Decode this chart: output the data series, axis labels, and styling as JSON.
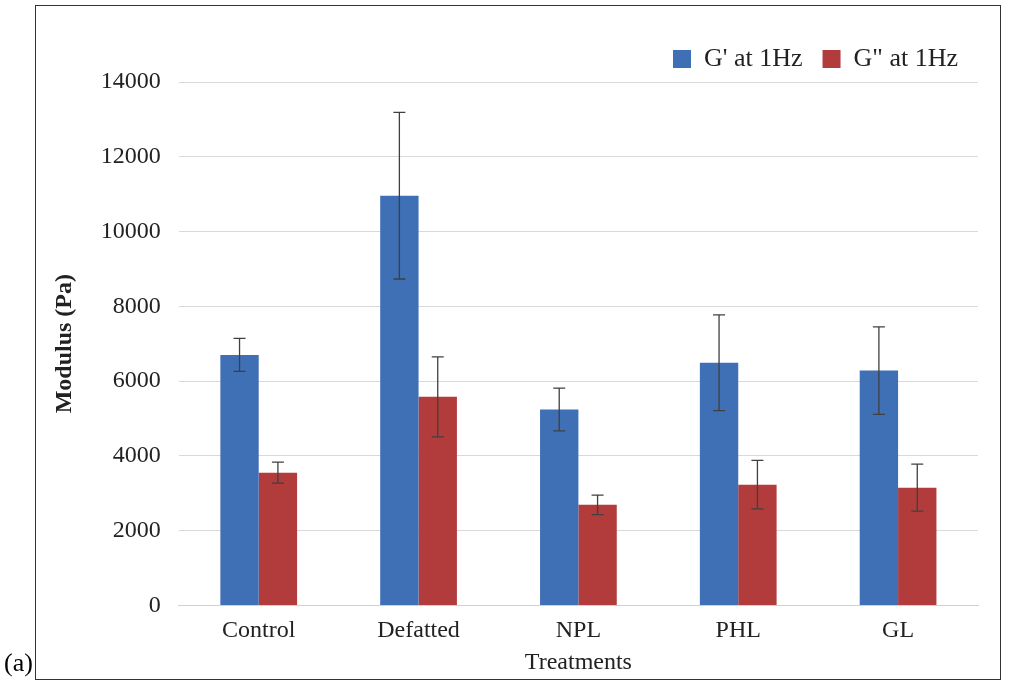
{
  "chart_data": {
    "type": "bar",
    "xlabel": "Treatments",
    "ylabel": "Modulus (Pa)",
    "categories": [
      "Control",
      "Defatted",
      "NPL",
      "PHL",
      "GL"
    ],
    "series": [
      {
        "name": "G' at 1Hz",
        "color": "#3f6fb5",
        "values": [
          6700,
          10960,
          5240,
          6490,
          6280
        ],
        "errors": [
          440,
          2230,
          570,
          1280,
          1170
        ]
      },
      {
        "name": "G\" at 1Hz",
        "color": "#b23b3b",
        "values": [
          3550,
          5580,
          2690,
          3230,
          3150
        ],
        "errors": [
          280,
          1070,
          260,
          650,
          630
        ]
      }
    ],
    "ylim": [
      0,
      14000
    ],
    "yticks": [
      0,
      2000,
      4000,
      6000,
      8000,
      10000,
      12000,
      14000
    ],
    "grid": "y",
    "legend": "top right",
    "annotations": [
      "(a)"
    ]
  }
}
